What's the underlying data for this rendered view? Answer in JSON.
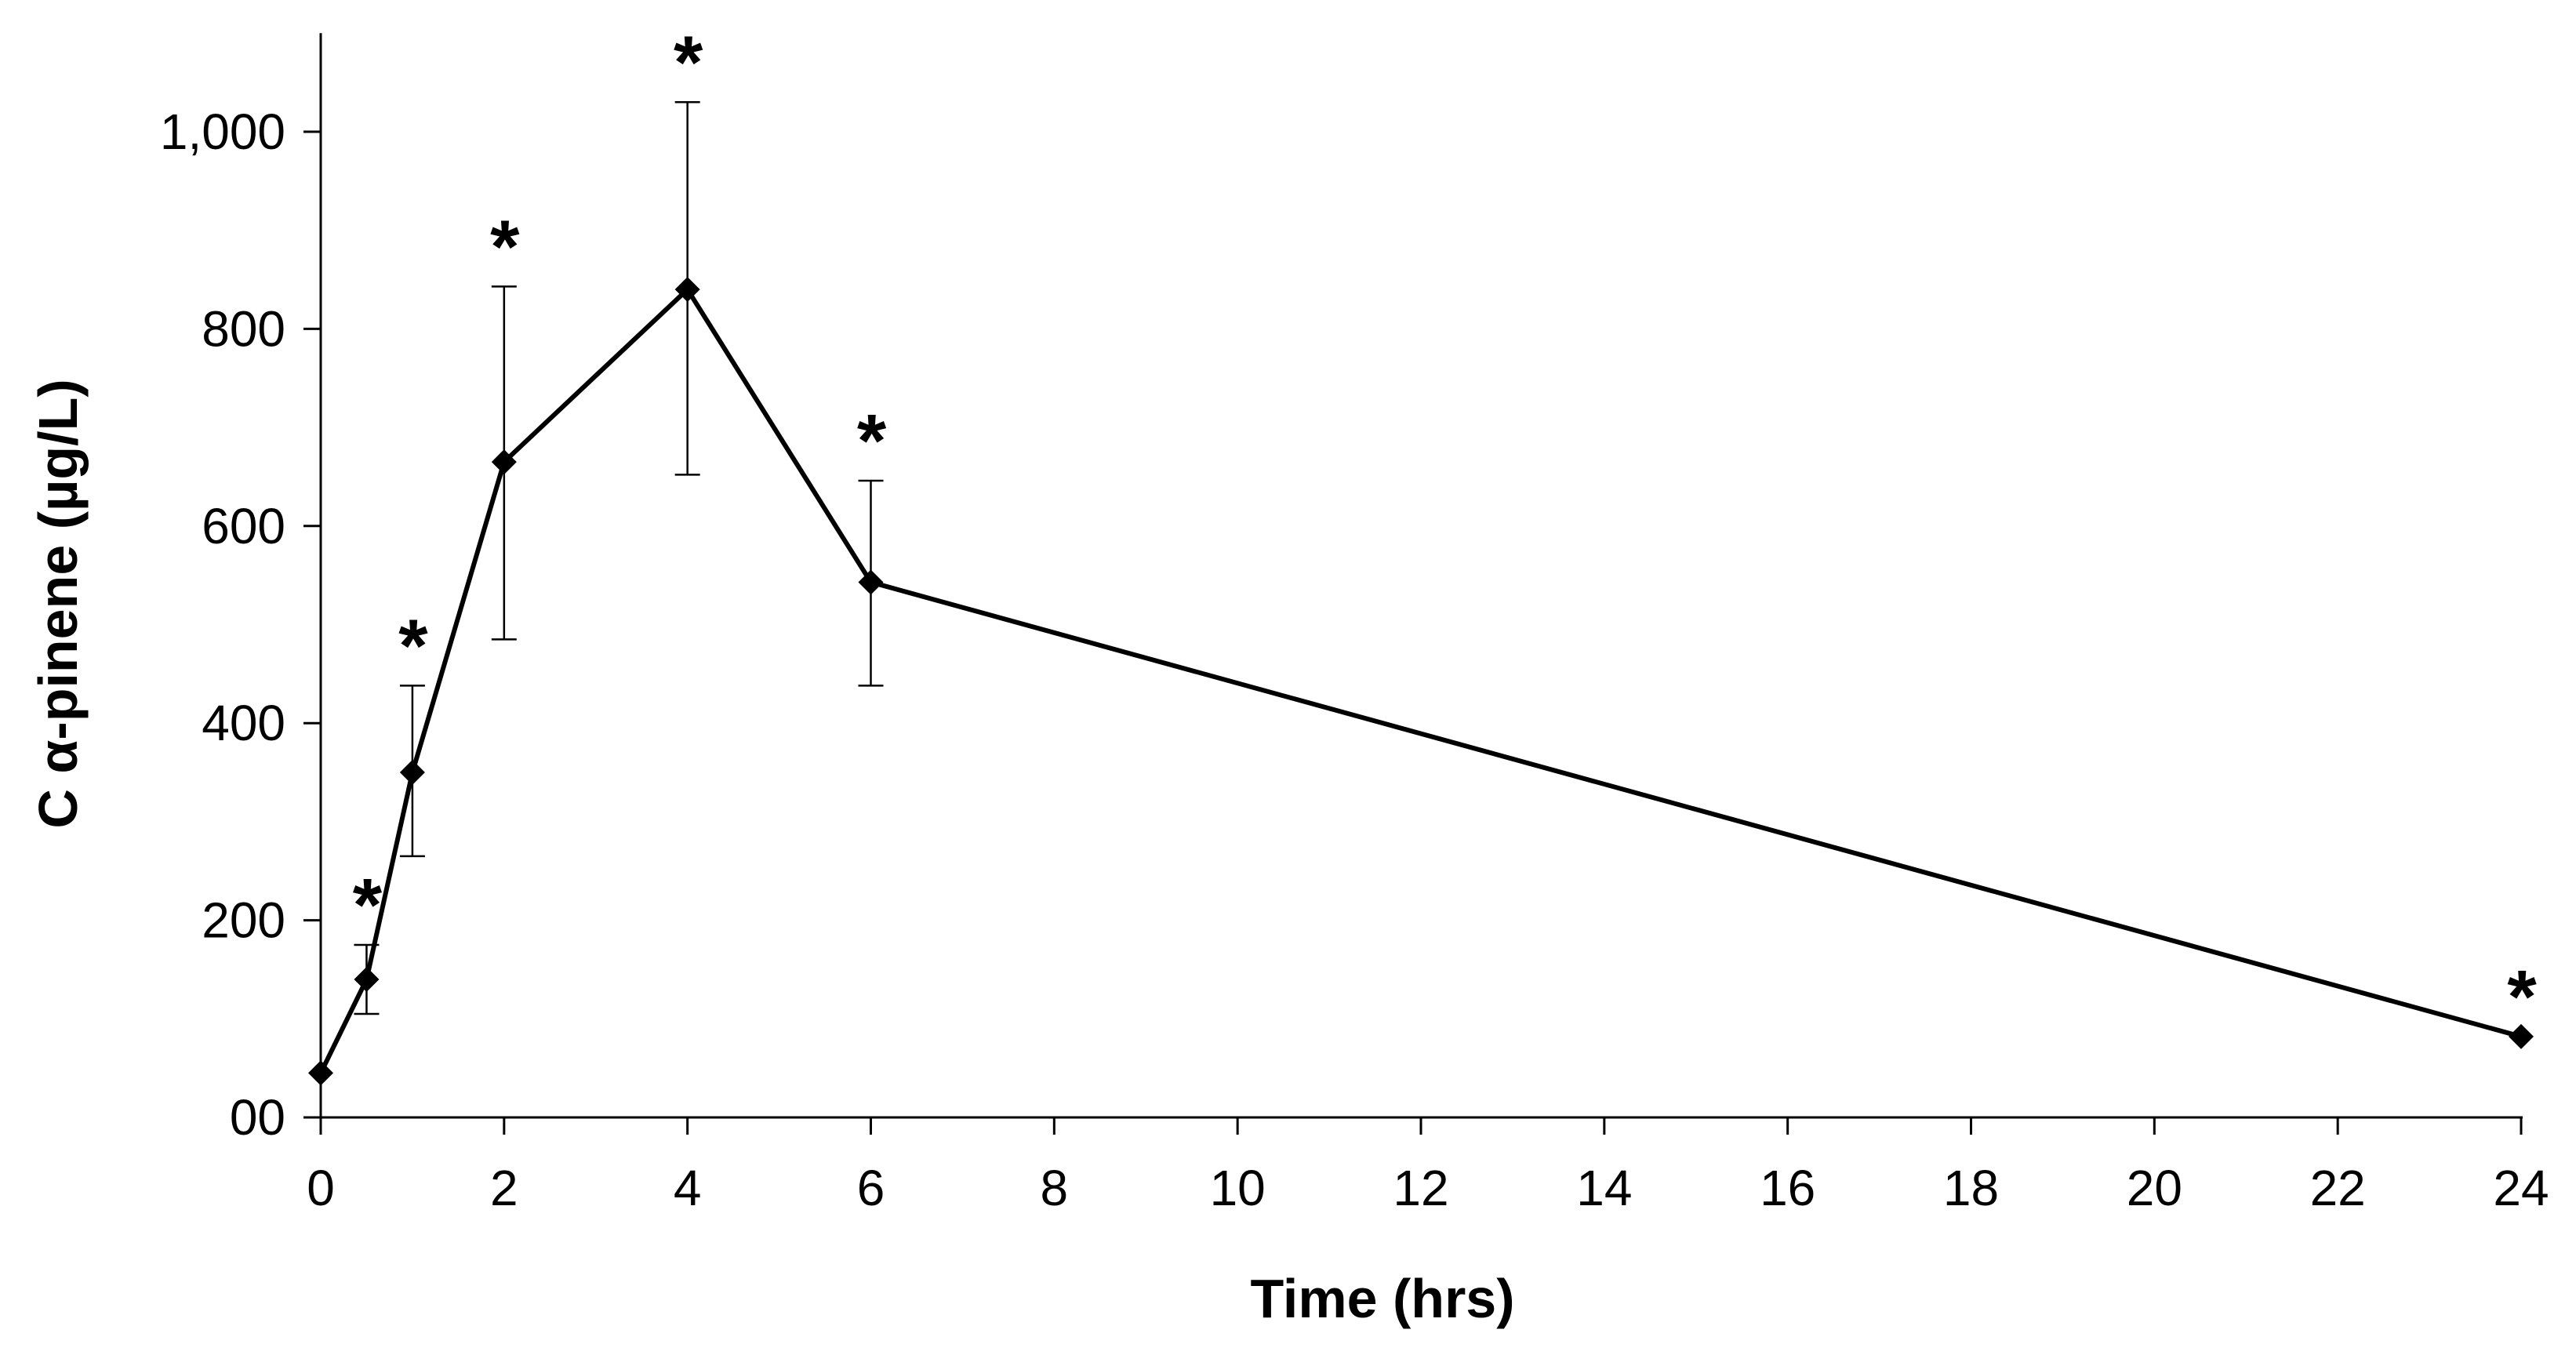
{
  "chart_data": {
    "type": "line",
    "title": "",
    "xlabel": "Time (hrs)",
    "ylabel": "C α-pinene (µg/L)",
    "xlim": [
      0,
      24
    ],
    "ylim": [
      0,
      1100
    ],
    "xticks": [
      0,
      2,
      4,
      6,
      8,
      10,
      12,
      14,
      16,
      18,
      20,
      22,
      24
    ],
    "xtick_labels": [
      "0",
      "2",
      "4",
      "6",
      "8",
      "10",
      "12",
      "14",
      "16",
      "18",
      "20",
      "22",
      "24"
    ],
    "yticks": [
      0,
      200,
      400,
      600,
      800,
      1000
    ],
    "ytick_labels": [
      "00",
      "200",
      "400",
      "600",
      "800",
      "1,000"
    ],
    "grid": false,
    "series": [
      {
        "name": "α-pinene",
        "marker": "diamond",
        "color": "#000000",
        "x": [
          0,
          0.5,
          1,
          2,
          4,
          6,
          24
        ],
        "y": [
          45,
          140,
          350,
          665,
          840,
          543,
          82
        ],
        "err_upper": [
          0,
          35,
          88,
          178,
          190,
          103,
          0
        ],
        "err_lower": [
          0,
          35,
          85,
          180,
          188,
          105,
          0
        ],
        "significance": [
          "",
          "*",
          "*",
          "*",
          "*",
          "*",
          "*"
        ]
      }
    ]
  }
}
